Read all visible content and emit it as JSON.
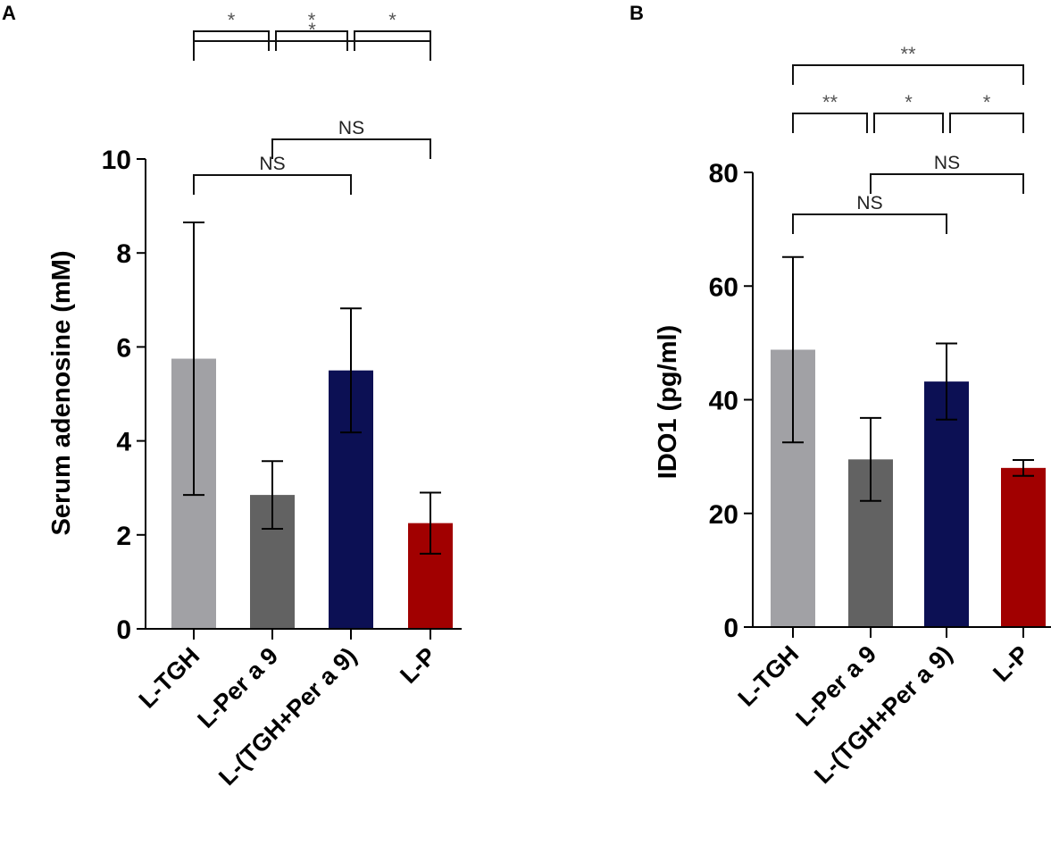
{
  "chart_data": [
    {
      "panel": "A",
      "type": "bar",
      "ylabel": "Serum adenosine (mM)",
      "ylim": [
        0,
        10
      ],
      "yticks": [
        0,
        2,
        4,
        6,
        8,
        10
      ],
      "categories": [
        "L-TGH",
        "L-Per a 9",
        "L-(TGH+Per a 9)",
        "L-P"
      ],
      "values": [
        5.75,
        2.85,
        5.5,
        2.25
      ],
      "errors": [
        2.9,
        0.72,
        1.32,
        0.65
      ],
      "colors": [
        "#a1a1a5",
        "#626262",
        "#0c1054",
        "#a10000"
      ],
      "comparisons": [
        {
          "from": 0,
          "to": 3,
          "label": "*"
        },
        {
          "from": 0,
          "to": 1,
          "label": "*"
        },
        {
          "from": 1,
          "to": 2,
          "label": "*"
        },
        {
          "from": 2,
          "to": 3,
          "label": "*"
        },
        {
          "from": 1,
          "to": 3,
          "label": "NS"
        },
        {
          "from": 0,
          "to": 2,
          "label": "NS"
        }
      ]
    },
    {
      "panel": "B",
      "type": "bar",
      "ylabel": "IDO1 (pg/ml)",
      "ylim": [
        0,
        80
      ],
      "yticks": [
        0,
        20,
        40,
        60,
        80
      ],
      "categories": [
        "L-TGH",
        "L-Per a 9",
        "L-(TGH+Per a 9)",
        "L-P"
      ],
      "values": [
        48.8,
        29.5,
        43.2,
        28.0
      ],
      "errors": [
        16.3,
        7.3,
        6.7,
        1.4
      ],
      "colors": [
        "#a1a1a5",
        "#626262",
        "#0c1054",
        "#a10000"
      ],
      "comparisons": [
        {
          "from": 0,
          "to": 3,
          "label": "**"
        },
        {
          "from": 0,
          "to": 1,
          "label": "**"
        },
        {
          "from": 1,
          "to": 2,
          "label": "*"
        },
        {
          "from": 2,
          "to": 3,
          "label": "*"
        },
        {
          "from": 1,
          "to": 3,
          "label": "NS"
        },
        {
          "from": 0,
          "to": 2,
          "label": "NS"
        }
      ]
    }
  ]
}
